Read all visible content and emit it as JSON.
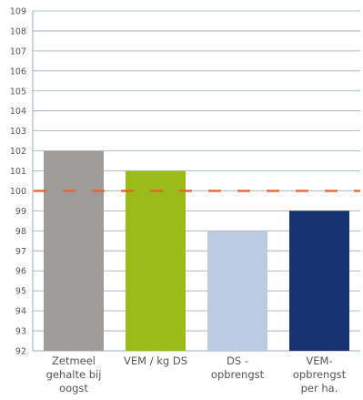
{
  "chart_data": {
    "type": "bar",
    "categories": [
      [
        "Zetmeel",
        "gehalte bij",
        "oogst"
      ],
      [
        "VEM / kg DS"
      ],
      [
        "DS -",
        "opbrengst"
      ],
      [
        "VEM-",
        "opbrengst",
        "per ha."
      ]
    ],
    "values": [
      102,
      101,
      98,
      99
    ],
    "bar_colors": [
      "#9d9b99",
      "#9bbb1a",
      "#bccbdf",
      "#17336f"
    ],
    "ylim": [
      92,
      109
    ],
    "ytick_step": 1,
    "grid": true,
    "grid_color": "#9aa8b8",
    "reference_line": {
      "value": 100,
      "color": "#e8622a",
      "style": "dashed"
    },
    "title": "",
    "xlabel": "",
    "ylabel": ""
  }
}
